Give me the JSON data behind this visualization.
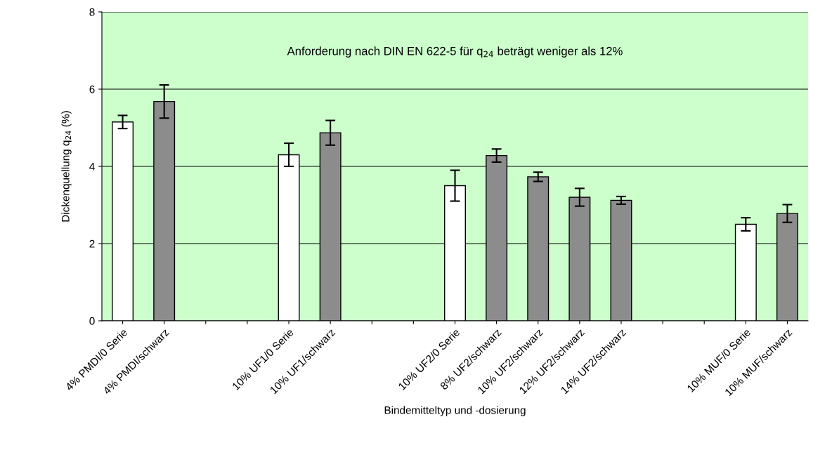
{
  "chart_data": {
    "type": "bar",
    "categories": [
      "4% PMDI/0 Serie",
      "4% PMDI/schwarz",
      null,
      null,
      "10% UF1/0 Serie",
      "10% UF1/schwarz",
      null,
      null,
      "10% UF2/0 Serie",
      "8% UF2/schwarz",
      "10% UF2/schwarz",
      "12% UF2/schwarz",
      "14% UF2/schwarz",
      null,
      null,
      "10% MUF/0 Serie",
      "10% MUF/schwarz"
    ],
    "values": [
      5.15,
      5.68,
      null,
      null,
      4.3,
      4.87,
      null,
      null,
      3.5,
      4.28,
      3.73,
      3.2,
      3.12,
      null,
      null,
      2.5,
      2.78
    ],
    "errors": [
      0.17,
      0.43,
      null,
      null,
      0.3,
      0.32,
      null,
      null,
      0.4,
      0.17,
      0.12,
      0.23,
      0.1,
      null,
      null,
      0.17,
      0.23
    ],
    "colors": [
      "#ffffff",
      "#8c8c8c",
      "#ffffff",
      "#ffffff",
      "#ffffff",
      "#8c8c8c",
      "#ffffff",
      "#ffffff",
      "#ffffff",
      "#8c8c8c",
      "#8c8c8c",
      "#8c8c8c",
      "#8c8c8c",
      "#ffffff",
      "#ffffff",
      "#ffffff",
      "#8c8c8c"
    ],
    "xlabel": "Bindemitteltyp und -dosierung",
    "ylabel": "Dickenquellung q$_{24}$ (%)",
    "annotations": [
      "Anforderung nach DIN EN 622-5 für q$_{24}$ beträgt weniger als 12%"
    ],
    "ylim": [
      0,
      8
    ],
    "yticks": [
      0,
      2,
      4,
      6,
      8
    ],
    "grid": "y",
    "legend": false
  }
}
